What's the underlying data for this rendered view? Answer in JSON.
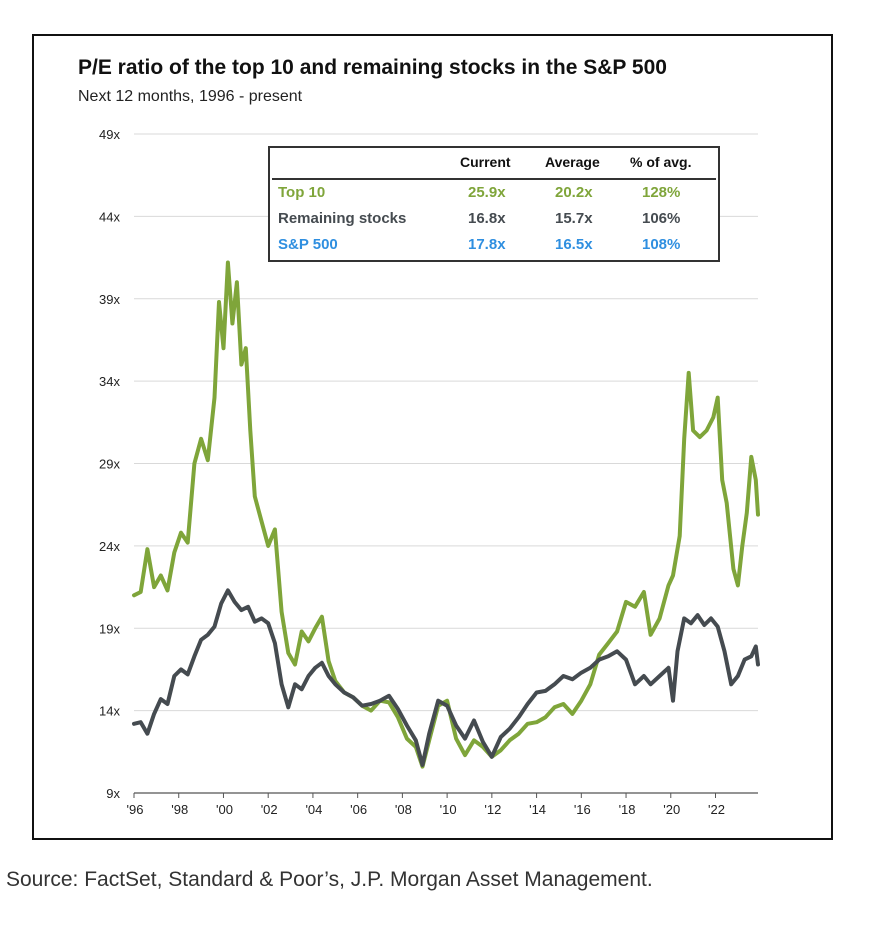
{
  "title": "P/E ratio of the top 10 and remaining stocks in the S&P 500",
  "subtitle": "Next 12 months, 1996 - present",
  "source": "Source: FactSet, Standard & Poor’s, J.P. Morgan Asset Management.",
  "colors": {
    "top10": "#7FA53A",
    "remaining": "#454B50",
    "sp500": "#2F8FE0"
  },
  "table": {
    "headers": [
      "Current",
      "Average",
      "% of avg."
    ],
    "rows": [
      {
        "label": "Top 10",
        "current": "25.9x",
        "average": "20.2x",
        "pct": "128%",
        "color": "#7FA53A"
      },
      {
        "label": "Remaining stocks",
        "current": "16.8x",
        "average": "15.7x",
        "pct": "106%",
        "color": "#454B50"
      },
      {
        "label": "S&P 500",
        "current": "17.8x",
        "average": "16.5x",
        "pct": "108%",
        "color": "#2F8FE0"
      }
    ]
  },
  "chart_data": {
    "type": "line",
    "title": "P/E ratio of the top 10 and remaining stocks in the S&P 500",
    "subtitle": "Next 12 months, 1996 - present",
    "xlim": [
      1996,
      2023.9
    ],
    "ylim": [
      9,
      49
    ],
    "y_ticks": [
      9,
      14,
      19,
      24,
      29,
      34,
      39,
      44,
      49
    ],
    "y_tick_labels": [
      "9x",
      "14x",
      "19x",
      "24x",
      "29x",
      "34x",
      "39x",
      "44x",
      "49x"
    ],
    "x_ticks": [
      1996,
      1998,
      2000,
      2002,
      2004,
      2006,
      2008,
      2010,
      2012,
      2014,
      2016,
      2018,
      2020,
      2022
    ],
    "x_tick_labels": [
      "'96",
      "'98",
      "'00",
      "'02",
      "'04",
      "'06",
      "'08",
      "'10",
      "'12",
      "'14",
      "'16",
      "'18",
      "'20",
      "'22"
    ],
    "grid": true,
    "series": [
      {
        "name": "Top 10",
        "color": "#7FA53A",
        "points": [
          [
            1996.0,
            21.0
          ],
          [
            1996.3,
            21.2
          ],
          [
            1996.6,
            23.8
          ],
          [
            1996.9,
            21.5
          ],
          [
            1997.2,
            22.2
          ],
          [
            1997.5,
            21.3
          ],
          [
            1997.8,
            23.6
          ],
          [
            1998.1,
            24.8
          ],
          [
            1998.4,
            24.2
          ],
          [
            1998.7,
            29.0
          ],
          [
            1999.0,
            30.5
          ],
          [
            1999.3,
            29.2
          ],
          [
            1999.6,
            33.0
          ],
          [
            1999.8,
            38.8
          ],
          [
            2000.0,
            36.0
          ],
          [
            2000.2,
            41.2
          ],
          [
            2000.4,
            37.5
          ],
          [
            2000.6,
            40.0
          ],
          [
            2000.8,
            35.0
          ],
          [
            2001.0,
            36.0
          ],
          [
            2001.2,
            31.0
          ],
          [
            2001.4,
            27.0
          ],
          [
            2001.7,
            25.5
          ],
          [
            2002.0,
            24.0
          ],
          [
            2002.3,
            25.0
          ],
          [
            2002.6,
            20.0
          ],
          [
            2002.9,
            17.5
          ],
          [
            2003.2,
            16.8
          ],
          [
            2003.5,
            18.8
          ],
          [
            2003.8,
            18.2
          ],
          [
            2004.1,
            19.0
          ],
          [
            2004.4,
            19.7
          ],
          [
            2004.7,
            17.0
          ],
          [
            2005.0,
            15.8
          ],
          [
            2005.4,
            15.1
          ],
          [
            2005.8,
            14.8
          ],
          [
            2006.2,
            14.3
          ],
          [
            2006.6,
            14.0
          ],
          [
            2007.0,
            14.6
          ],
          [
            2007.4,
            14.5
          ],
          [
            2007.8,
            13.6
          ],
          [
            2008.2,
            12.3
          ],
          [
            2008.6,
            11.8
          ],
          [
            2008.9,
            10.6
          ],
          [
            2009.2,
            12.2
          ],
          [
            2009.6,
            14.3
          ],
          [
            2010.0,
            14.6
          ],
          [
            2010.4,
            12.3
          ],
          [
            2010.8,
            11.3
          ],
          [
            2011.2,
            12.2
          ],
          [
            2011.6,
            11.8
          ],
          [
            2012.0,
            11.2
          ],
          [
            2012.4,
            11.6
          ],
          [
            2012.8,
            12.2
          ],
          [
            2013.2,
            12.6
          ],
          [
            2013.6,
            13.2
          ],
          [
            2014.0,
            13.3
          ],
          [
            2014.4,
            13.6
          ],
          [
            2014.8,
            14.2
          ],
          [
            2015.2,
            14.4
          ],
          [
            2015.6,
            13.8
          ],
          [
            2016.0,
            14.6
          ],
          [
            2016.4,
            15.6
          ],
          [
            2016.8,
            17.4
          ],
          [
            2017.2,
            18.1
          ],
          [
            2017.6,
            18.8
          ],
          [
            2018.0,
            20.6
          ],
          [
            2018.4,
            20.3
          ],
          [
            2018.8,
            21.2
          ],
          [
            2019.1,
            18.6
          ],
          [
            2019.5,
            19.6
          ],
          [
            2019.9,
            21.6
          ],
          [
            2020.1,
            22.2
          ],
          [
            2020.4,
            24.6
          ],
          [
            2020.6,
            30.5
          ],
          [
            2020.8,
            34.5
          ],
          [
            2021.0,
            31.0
          ],
          [
            2021.3,
            30.6
          ],
          [
            2021.6,
            31.0
          ],
          [
            2021.9,
            31.8
          ],
          [
            2022.1,
            33.0
          ],
          [
            2022.3,
            28.0
          ],
          [
            2022.5,
            26.6
          ],
          [
            2022.8,
            22.6
          ],
          [
            2023.0,
            21.6
          ],
          [
            2023.2,
            24.0
          ],
          [
            2023.4,
            26.0
          ],
          [
            2023.6,
            29.4
          ],
          [
            2023.8,
            28.0
          ],
          [
            2023.9,
            25.9
          ]
        ]
      },
      {
        "name": "Remaining stocks",
        "color": "#454B50",
        "points": [
          [
            1996.0,
            13.2
          ],
          [
            1996.3,
            13.3
          ],
          [
            1996.6,
            12.6
          ],
          [
            1996.9,
            13.8
          ],
          [
            1997.2,
            14.7
          ],
          [
            1997.5,
            14.4
          ],
          [
            1997.8,
            16.1
          ],
          [
            1998.1,
            16.5
          ],
          [
            1998.4,
            16.2
          ],
          [
            1998.7,
            17.3
          ],
          [
            1999.0,
            18.3
          ],
          [
            1999.3,
            18.6
          ],
          [
            1999.6,
            19.1
          ],
          [
            1999.9,
            20.5
          ],
          [
            2000.2,
            21.3
          ],
          [
            2000.5,
            20.6
          ],
          [
            2000.8,
            20.1
          ],
          [
            2001.1,
            20.3
          ],
          [
            2001.4,
            19.4
          ],
          [
            2001.7,
            19.6
          ],
          [
            2002.0,
            19.3
          ],
          [
            2002.3,
            18.1
          ],
          [
            2002.6,
            15.6
          ],
          [
            2002.9,
            14.2
          ],
          [
            2003.2,
            15.6
          ],
          [
            2003.5,
            15.3
          ],
          [
            2003.8,
            16.1
          ],
          [
            2004.1,
            16.6
          ],
          [
            2004.4,
            16.9
          ],
          [
            2004.7,
            16.1
          ],
          [
            2005.0,
            15.6
          ],
          [
            2005.4,
            15.1
          ],
          [
            2005.8,
            14.8
          ],
          [
            2006.2,
            14.3
          ],
          [
            2006.6,
            14.4
          ],
          [
            2007.0,
            14.6
          ],
          [
            2007.4,
            14.9
          ],
          [
            2007.8,
            14.1
          ],
          [
            2008.2,
            13.1
          ],
          [
            2008.6,
            12.2
          ],
          [
            2008.9,
            10.7
          ],
          [
            2009.2,
            12.6
          ],
          [
            2009.6,
            14.6
          ],
          [
            2010.0,
            14.3
          ],
          [
            2010.4,
            13.1
          ],
          [
            2010.8,
            12.3
          ],
          [
            2011.2,
            13.4
          ],
          [
            2011.6,
            12.1
          ],
          [
            2012.0,
            11.2
          ],
          [
            2012.4,
            12.4
          ],
          [
            2012.8,
            12.9
          ],
          [
            2013.2,
            13.6
          ],
          [
            2013.6,
            14.4
          ],
          [
            2014.0,
            15.1
          ],
          [
            2014.4,
            15.2
          ],
          [
            2014.8,
            15.6
          ],
          [
            2015.2,
            16.1
          ],
          [
            2015.6,
            15.9
          ],
          [
            2016.0,
            16.3
          ],
          [
            2016.4,
            16.6
          ],
          [
            2016.8,
            17.1
          ],
          [
            2017.2,
            17.3
          ],
          [
            2017.6,
            17.6
          ],
          [
            2018.0,
            17.1
          ],
          [
            2018.4,
            15.6
          ],
          [
            2018.8,
            16.1
          ],
          [
            2019.1,
            15.6
          ],
          [
            2019.5,
            16.1
          ],
          [
            2019.9,
            16.6
          ],
          [
            2020.1,
            14.6
          ],
          [
            2020.3,
            17.6
          ],
          [
            2020.6,
            19.6
          ],
          [
            2020.9,
            19.3
          ],
          [
            2021.2,
            19.8
          ],
          [
            2021.5,
            19.2
          ],
          [
            2021.8,
            19.6
          ],
          [
            2022.1,
            19.1
          ],
          [
            2022.4,
            17.6
          ],
          [
            2022.7,
            15.6
          ],
          [
            2023.0,
            16.1
          ],
          [
            2023.3,
            17.1
          ],
          [
            2023.6,
            17.3
          ],
          [
            2023.8,
            17.9
          ],
          [
            2023.9,
            16.8
          ]
        ]
      }
    ]
  }
}
